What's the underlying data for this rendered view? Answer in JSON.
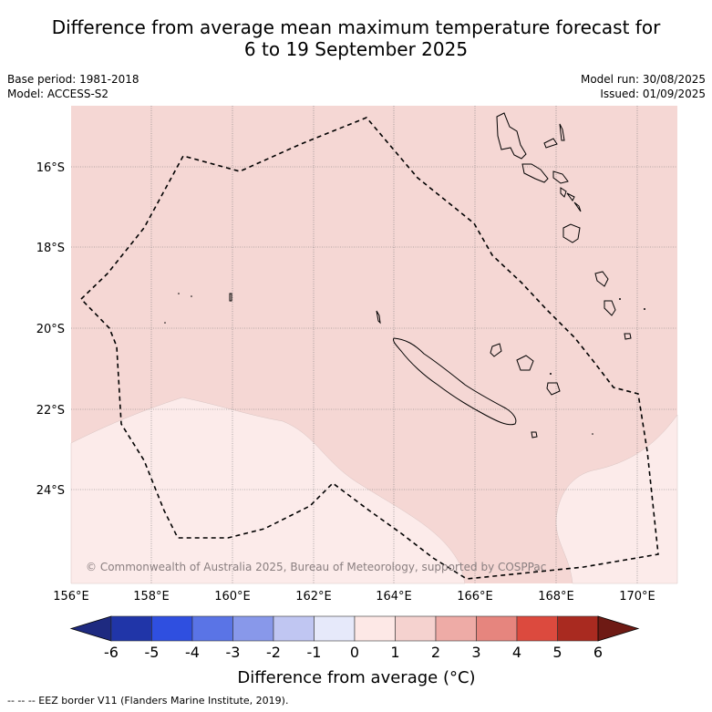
{
  "title_line1": "Difference from average mean maximum temperature forecast for",
  "title_line2": "6 to 19 September 2025",
  "base_period": "Base period: 1981-2018",
  "model": "Model: ACCESS-S2",
  "model_run": "Model run: 30/08/2025",
  "issued": "Issued: 01/09/2025",
  "copyright": "© Commonwealth of Australia 2025, Bureau of Meteorology, supported by COSPPac",
  "lat_ticks": [
    "16°S",
    "18°S",
    "20°S",
    "22°S",
    "24°S"
  ],
  "lon_ticks": [
    "156°E",
    "158°E",
    "160°E",
    "162°E",
    "164°E",
    "166°E",
    "168°E",
    "170°E"
  ],
  "colorbar": {
    "labels": [
      "-6",
      "-5",
      "-4",
      "-3",
      "-2",
      "-1",
      "0",
      "1",
      "2",
      "3",
      "4",
      "5",
      "6"
    ],
    "colors": [
      "#2035a8",
      "#2f4fe0",
      "#5a74e6",
      "#8898ea",
      "#c0c6f2",
      "#e6e9fa",
      "#fde8e6",
      "#f5d2cf",
      "#eeaba6",
      "#e6857e",
      "#dc4a3e",
      "#a92a20"
    ],
    "under_color": "#1e2a80",
    "over_color": "#6e1a14",
    "title": "Difference from average (°C)"
  },
  "map_fill": {
    "zero_to_one": "#fcebea",
    "one_to_two": "#f5d7d4"
  },
  "legend_note": "--  --  -- EEZ border V11 (Flanders Marine Institute, 2019)."
}
